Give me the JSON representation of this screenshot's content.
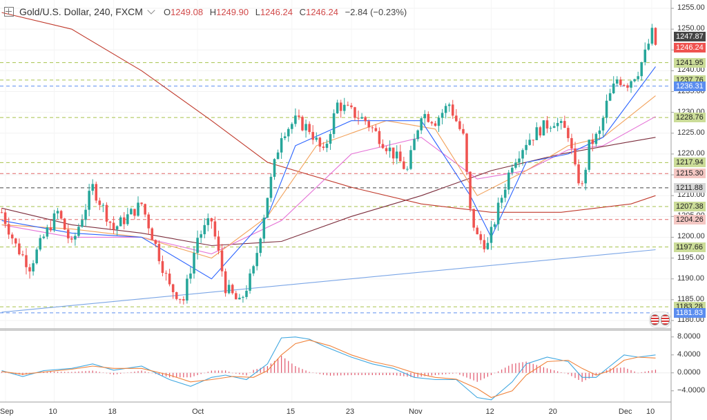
{
  "header": {
    "title": "Gold/U.S. Dollar, 240, FXCM",
    "open_label": "O",
    "open": "1249.08",
    "high_label": "H",
    "high": "1249.90",
    "low_label": "L",
    "low": "1246.24",
    "close_label": "C",
    "close": "1246.24",
    "change": "−2.84 (−0.23%)"
  },
  "icons": {
    "add": "plus-box-icon",
    "collapse": "chevron-down-icon",
    "flag": "us-flag-icon"
  },
  "colors": {
    "up": "#26a69a",
    "down": "#ef5350",
    "ma_red": "#c0392b",
    "ma_maroon": "#7b2c3b",
    "ma_orange": "#f2a15a",
    "ma_pink": "#e572d6",
    "ma_blue": "#2962ff",
    "trend": "#7aa5e6",
    "macd": "#3fa7e0",
    "signal": "#f0823a"
  },
  "chart_data": [
    {
      "type": "line",
      "subtype": "candlestick",
      "symbol": "Gold/U.S. Dollar",
      "interval": "240",
      "source": "FXCM",
      "x_tick_labels": [
        "Sep",
        "10",
        "18",
        "Oct",
        "15",
        "23",
        "Nov",
        "12",
        "20",
        "Dec",
        "10"
      ],
      "y_tick_labels": [
        "1255.00",
        "1250.00",
        "1245.00",
        "1240.00",
        "1235.00",
        "1230.00",
        "1225.00",
        "1220.00",
        "1215.00",
        "1210.00",
        "1205.00",
        "1200.00",
        "1195.00",
        "1190.00",
        "1185.00",
        "1180.00"
      ],
      "ylim": [
        1178,
        1257
      ],
      "price_path": [
        [
          0,
          1206
        ],
        [
          4,
          1198
        ],
        [
          8,
          1193
        ],
        [
          12,
          1200
        ],
        [
          16,
          1206
        ],
        [
          20,
          1198
        ],
        [
          26,
          1212
        ],
        [
          32,
          1202
        ],
        [
          40,
          1208
        ],
        [
          44,
          1198
        ],
        [
          48,
          1188
        ],
        [
          52,
          1185
        ],
        [
          56,
          1200
        ],
        [
          60,
          1204
        ],
        [
          64,
          1188
        ],
        [
          68,
          1184
        ],
        [
          72,
          1192
        ],
        [
          76,
          1210
        ],
        [
          80,
          1225
        ],
        [
          84,
          1228
        ],
        [
          88,
          1226
        ],
        [
          92,
          1220
        ],
        [
          96,
          1232
        ],
        [
          100,
          1230
        ],
        [
          104,
          1228
        ],
        [
          108,
          1224
        ],
        [
          112,
          1220
        ],
        [
          116,
          1216
        ],
        [
          120,
          1230
        ],
        [
          124,
          1228
        ],
        [
          128,
          1232
        ],
        [
          132,
          1224
        ],
        [
          134,
          1206
        ],
        [
          136,
          1200
        ],
        [
          139,
          1198
        ],
        [
          142,
          1207
        ],
        [
          146,
          1218
        ],
        [
          150,
          1223
        ],
        [
          154,
          1226
        ],
        [
          158,
          1228
        ],
        [
          162,
          1225
        ],
        [
          164,
          1216
        ],
        [
          166,
          1212
        ],
        [
          168,
          1222
        ],
        [
          171,
          1225
        ],
        [
          173,
          1232
        ],
        [
          176,
          1238
        ],
        [
          179,
          1237
        ],
        [
          182,
          1240
        ],
        [
          184,
          1244
        ],
        [
          186,
          1249
        ],
        [
          187,
          1246.24
        ]
      ],
      "series": [
        {
          "name": "Price",
          "type": "candlestick"
        },
        {
          "name": "",
          "color": "#c0392b",
          "points": [
            [
              0,
              1254
            ],
            [
              20,
              1250
            ],
            [
              40,
              1240
            ],
            [
              60,
              1228
            ],
            [
              76,
              1218
            ],
            [
              100,
              1212
            ],
            [
              120,
              1208
            ],
            [
              140,
              1206
            ],
            [
              160,
              1206
            ],
            [
              180,
              1208
            ],
            [
              187,
              1210
            ]
          ]
        },
        {
          "name": "",
          "color": "#7b2c3b",
          "points": [
            [
              0,
              1207
            ],
            [
              20,
              1203
            ],
            [
              40,
              1201
            ],
            [
              60,
              1198
            ],
            [
              80,
              1199
            ],
            [
              100,
              1205
            ],
            [
              120,
              1210
            ],
            [
              140,
              1216
            ],
            [
              160,
              1220
            ],
            [
              180,
              1223
            ],
            [
              187,
              1224
            ]
          ]
        },
        {
          "name": "",
          "color": "#e572d6",
          "points": [
            [
              0,
              1203
            ],
            [
              20,
              1200
            ],
            [
              40,
              1200
            ],
            [
              60,
              1196
            ],
            [
              80,
              1204
            ],
            [
              100,
              1220
            ],
            [
              120,
              1224
            ],
            [
              136,
              1214
            ],
            [
              150,
              1216
            ],
            [
              162,
              1221
            ],
            [
              172,
              1222
            ],
            [
              187,
              1229
            ]
          ]
        },
        {
          "name": "",
          "color": "#f2a15a",
          "points": [
            [
              0,
              1203
            ],
            [
              20,
              1202
            ],
            [
              40,
              1200
            ],
            [
              60,
              1195
            ],
            [
              76,
              1205
            ],
            [
              90,
              1222
            ],
            [
              110,
              1228
            ],
            [
              124,
              1226
            ],
            [
              136,
              1210
            ],
            [
              150,
              1216
            ],
            [
              162,
              1222
            ],
            [
              172,
              1224
            ],
            [
              187,
              1234
            ]
          ]
        },
        {
          "name": "",
          "color": "#2962ff",
          "points": [
            [
              0,
              1204
            ],
            [
              20,
              1201
            ],
            [
              40,
              1200
            ],
            [
              60,
              1190
            ],
            [
              76,
              1205
            ],
            [
              84,
              1222
            ],
            [
              100,
              1228
            ],
            [
              120,
              1228
            ],
            [
              134,
              1210
            ],
            [
              140,
              1200
            ],
            [
              150,
              1218
            ],
            [
              162,
              1220
            ],
            [
              172,
              1224
            ],
            [
              187,
              1241
            ]
          ]
        },
        {
          "name": "",
          "color": "#7aa5e6",
          "points": [
            [
              0,
              1182
            ],
            [
              187,
              1197
            ]
          ]
        }
      ],
      "horizontal_levels": [
        {
          "value": 1241.95,
          "label": "1241.95",
          "color": "#a6c24b",
          "label_bg": "#cbdc98",
          "label_color": "#222222"
        },
        {
          "value": 1237.76,
          "label": "1237.76",
          "color": "#a6c24b",
          "label_bg": "#cbdc98",
          "label_color": "#222222"
        },
        {
          "value": 1236.31,
          "label": "1236.31",
          "color": "#5b8def",
          "label_bg": "#5b8def",
          "label_color": "#ffffff"
        },
        {
          "value": 1228.76,
          "label": "1228.76",
          "color": "#a6c24b",
          "label_bg": "#cbdc98",
          "label_color": "#222222"
        },
        {
          "value": 1217.94,
          "label": "1217.94",
          "color": "#a6c24b",
          "label_bg": "#cbdc98",
          "label_color": "#222222"
        },
        {
          "value": 1215.3,
          "label": "1215.30",
          "color": "#e06666",
          "label_bg": "#f4c7c3",
          "label_color": "#222222"
        },
        {
          "value": 1211.88,
          "label": "1211.88",
          "color": "#444444",
          "label_bg": "#d6d6d6",
          "label_color": "#222222"
        },
        {
          "value": 1207.38,
          "label": "1207.38",
          "color": "#a6c24b",
          "label_bg": "#cbdc98",
          "label_color": "#222222"
        },
        {
          "value": 1204.26,
          "label": "1204.26",
          "color": "#e06666",
          "label_bg": "#f4c7c3",
          "label_color": "#222222"
        },
        {
          "value": 1197.66,
          "label": "1197.66",
          "color": "#a6c24b",
          "label_bg": "#cbdc98",
          "label_color": "#222222"
        },
        {
          "value": 1183.28,
          "label": "1183.28",
          "color": "#a6c24b",
          "label_bg": "#cbdc98",
          "label_color": "#222222"
        },
        {
          "value": 1181.83,
          "label": "1181.83",
          "color": "#5b8def",
          "label_bg": "#5b8def",
          "label_color": "#ffffff"
        }
      ],
      "price_tags": [
        {
          "value": 1247.87,
          "label": "1247.87",
          "bg": "#444444",
          "color": "#ffffff"
        },
        {
          "value": 1246.24,
          "label": "1246.24",
          "bg": "#ef5350",
          "color": "#ffffff"
        }
      ]
    },
    {
      "type": "bar",
      "subtype": "macd",
      "y_tick_labels": [
        "8.0000",
        "4.0000",
        "0.0000",
        "−4.0000"
      ],
      "ylim": [
        -6.5,
        9.5
      ],
      "macd_path": [
        [
          0,
          0.5
        ],
        [
          6,
          -0.8
        ],
        [
          12,
          0.5
        ],
        [
          20,
          1
        ],
        [
          26,
          2
        ],
        [
          32,
          0.6
        ],
        [
          40,
          1.5
        ],
        [
          48,
          -1.5
        ],
        [
          54,
          -3
        ],
        [
          60,
          -1
        ],
        [
          64,
          -0.5
        ],
        [
          70,
          -1.5
        ],
        [
          76,
          2
        ],
        [
          80,
          7.8
        ],
        [
          84,
          8
        ],
        [
          88,
          7.5
        ],
        [
          92,
          6
        ],
        [
          100,
          3.5
        ],
        [
          106,
          2
        ],
        [
          112,
          1
        ],
        [
          118,
          -1
        ],
        [
          124,
          -1.5
        ],
        [
          130,
          -1.5
        ],
        [
          136,
          -5.5
        ],
        [
          140,
          -6
        ],
        [
          146,
          -2
        ],
        [
          150,
          2
        ],
        [
          156,
          3.5
        ],
        [
          162,
          2.5
        ],
        [
          166,
          -1
        ],
        [
          170,
          -1
        ],
        [
          174,
          1.5
        ],
        [
          178,
          4
        ],
        [
          182,
          3.5
        ],
        [
          187,
          4
        ]
      ],
      "signal_path": [
        [
          0,
          0.3
        ],
        [
          6,
          -0.3
        ],
        [
          12,
          0.2
        ],
        [
          20,
          0.8
        ],
        [
          26,
          1.5
        ],
        [
          32,
          1
        ],
        [
          40,
          1
        ],
        [
          48,
          -0.5
        ],
        [
          54,
          -2
        ],
        [
          60,
          -1.5
        ],
        [
          66,
          -0.8
        ],
        [
          72,
          -1
        ],
        [
          76,
          0.5
        ],
        [
          80,
          4
        ],
        [
          84,
          6.5
        ],
        [
          88,
          7.3
        ],
        [
          94,
          6
        ],
        [
          100,
          4
        ],
        [
          106,
          2.5
        ],
        [
          112,
          1.5
        ],
        [
          118,
          0
        ],
        [
          124,
          -1
        ],
        [
          130,
          -1.4
        ],
        [
          136,
          -3.5
        ],
        [
          140,
          -5.5
        ],
        [
          146,
          -4
        ],
        [
          150,
          -0.5
        ],
        [
          156,
          2.5
        ],
        [
          162,
          2.8
        ],
        [
          166,
          1
        ],
        [
          170,
          -0.5
        ],
        [
          174,
          0.5
        ],
        [
          178,
          2.8
        ],
        [
          182,
          3.5
        ],
        [
          187,
          3.3
        ]
      ]
    }
  ]
}
